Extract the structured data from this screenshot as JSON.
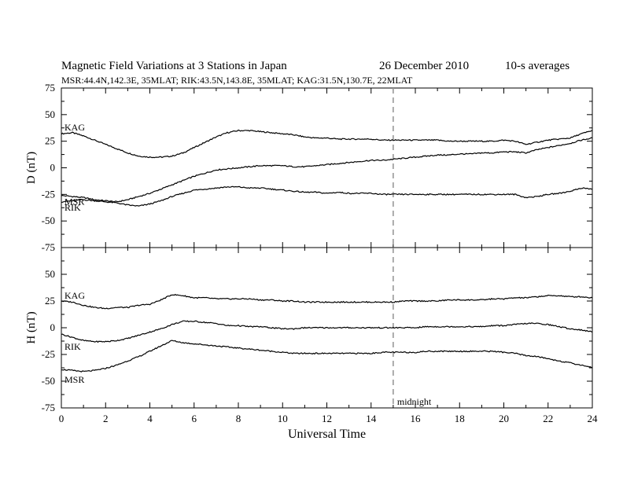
{
  "header": {
    "title": "Magnetic Field Variations at 3 Stations in Japan",
    "date": "26 December 2010",
    "averaging": "10-s averages",
    "stations_line": "MSR:44.4N,142.3E, 35MLAT;  RIK:43.5N,143.8E, 35MLAT;  KAG:31.5N,130.7E, 22MLAT"
  },
  "chart_data": [
    {
      "type": "line",
      "panel": "D",
      "ylabel": "D (nT)",
      "ylim": [
        -75,
        75
      ],
      "yticks": [
        75,
        50,
        25,
        0,
        -25,
        -50,
        -75
      ],
      "x": [
        0,
        0.5,
        1,
        1.5,
        2,
        2.5,
        3,
        3.5,
        4,
        4.5,
        5,
        5.5,
        6,
        6.5,
        7,
        7.5,
        8,
        8.5,
        9,
        9.5,
        10,
        10.5,
        11,
        11.5,
        12,
        12.5,
        13,
        13.5,
        14,
        14.5,
        15,
        15.5,
        16,
        16.5,
        17,
        17.5,
        18,
        18.5,
        19,
        19.5,
        20,
        20.5,
        21,
        21.5,
        22,
        22.5,
        23,
        23.5,
        24
      ],
      "series": [
        {
          "name": "KAG",
          "values": [
            32,
            33,
            30,
            26,
            22,
            18,
            14,
            11,
            10,
            10,
            11,
            14,
            19,
            24,
            29,
            33,
            35,
            35,
            34,
            33,
            32,
            31,
            29,
            28,
            28,
            27,
            27,
            27,
            27,
            26,
            26,
            26,
            26,
            26,
            26,
            25,
            25,
            25,
            25,
            25,
            26,
            25,
            22,
            24,
            26,
            27,
            28,
            32,
            35
          ]
        },
        {
          "name": "MSR",
          "values": [
            -26,
            -27,
            -28,
            -30,
            -31,
            -32,
            -30,
            -27,
            -24,
            -20,
            -16,
            -12,
            -8,
            -5,
            -2,
            -1,
            0,
            1,
            2,
            2,
            2,
            1,
            1,
            2,
            3,
            4,
            5,
            6,
            7,
            7,
            8,
            9,
            10,
            11,
            12,
            12,
            13,
            13,
            14,
            14,
            15,
            15,
            14,
            17,
            19,
            21,
            23,
            26,
            28
          ]
        },
        {
          "name": "RIK",
          "values": [
            -32,
            -31,
            -30,
            -31,
            -32,
            -33,
            -35,
            -36,
            -34,
            -31,
            -27,
            -24,
            -21,
            -20,
            -19,
            -18,
            -18,
            -19,
            -19,
            -20,
            -21,
            -22,
            -23,
            -23,
            -24,
            -23,
            -24,
            -24,
            -24,
            -25,
            -25,
            -25,
            -25,
            -25,
            -25,
            -25,
            -25,
            -25,
            -25,
            -25,
            -25,
            -25,
            -28,
            -27,
            -25,
            -24,
            -22,
            -19,
            -20
          ]
        }
      ],
      "series_labels": [
        "KAG",
        "MSR",
        "RIK"
      ],
      "annotations": []
    },
    {
      "type": "line",
      "panel": "H",
      "ylabel": "H (nT)",
      "ylim": [
        -75,
        75
      ],
      "yticks": [
        75,
        50,
        25,
        0,
        -25,
        -50,
        -75
      ],
      "xlim": [
        0,
        24
      ],
      "xticks": [
        0,
        2,
        4,
        6,
        8,
        10,
        12,
        14,
        16,
        18,
        20,
        22,
        24
      ],
      "xlabel": "Universal Time",
      "x": [
        0,
        0.5,
        1,
        1.5,
        2,
        2.5,
        3,
        3.5,
        4,
        4.5,
        5,
        5.5,
        6,
        6.5,
        7,
        7.5,
        8,
        8.5,
        9,
        9.5,
        10,
        10.5,
        11,
        11.5,
        12,
        12.5,
        13,
        13.5,
        14,
        14.5,
        15,
        15.5,
        16,
        16.5,
        17,
        17.5,
        18,
        18.5,
        19,
        19.5,
        20,
        20.5,
        21,
        21.5,
        22,
        22.5,
        23,
        23.5,
        24
      ],
      "series": [
        {
          "name": "KAG",
          "values": [
            25,
            24,
            21,
            19,
            18,
            19,
            19,
            21,
            22,
            26,
            31,
            30,
            28,
            28,
            27,
            27,
            27,
            27,
            26,
            26,
            25,
            25,
            24,
            24,
            24,
            24,
            24,
            24,
            24,
            24,
            24,
            25,
            25,
            25,
            25,
            26,
            26,
            26,
            26,
            27,
            27,
            28,
            28,
            29,
            30,
            30,
            29,
            29,
            28
          ]
        },
        {
          "name": "RIK",
          "values": [
            -6,
            -9,
            -12,
            -13,
            -13,
            -12,
            -10,
            -7,
            -4,
            -1,
            3,
            6,
            6,
            5,
            4,
            2,
            2,
            1,
            1,
            0,
            -1,
            -1,
            0,
            0,
            0,
            0,
            0,
            0,
            0,
            0,
            0,
            0,
            0,
            1,
            1,
            1,
            1,
            1,
            1,
            2,
            2,
            3,
            4,
            4,
            3,
            1,
            -1,
            -2,
            -4
          ]
        },
        {
          "name": "MSR",
          "values": [
            -39,
            -40,
            -41,
            -40,
            -38,
            -35,
            -31,
            -27,
            -22,
            -17,
            -12,
            -14,
            -15,
            -16,
            -17,
            -18,
            -19,
            -20,
            -21,
            -22,
            -23,
            -24,
            -24,
            -24,
            -24,
            -24,
            -24,
            -24,
            -24,
            -23,
            -23,
            -23,
            -23,
            -22,
            -22,
            -22,
            -22,
            -22,
            -22,
            -22,
            -23,
            -24,
            -26,
            -27,
            -29,
            -31,
            -33,
            -35,
            -37
          ]
        }
      ],
      "series_labels": [
        "KAG",
        "RIK",
        "MSR"
      ],
      "annotations": [
        {
          "x": 15,
          "text": "midnight"
        }
      ]
    }
  ],
  "colors": {
    "trace": "#000000",
    "midnight_line": "#999999",
    "axis": "#000000"
  }
}
